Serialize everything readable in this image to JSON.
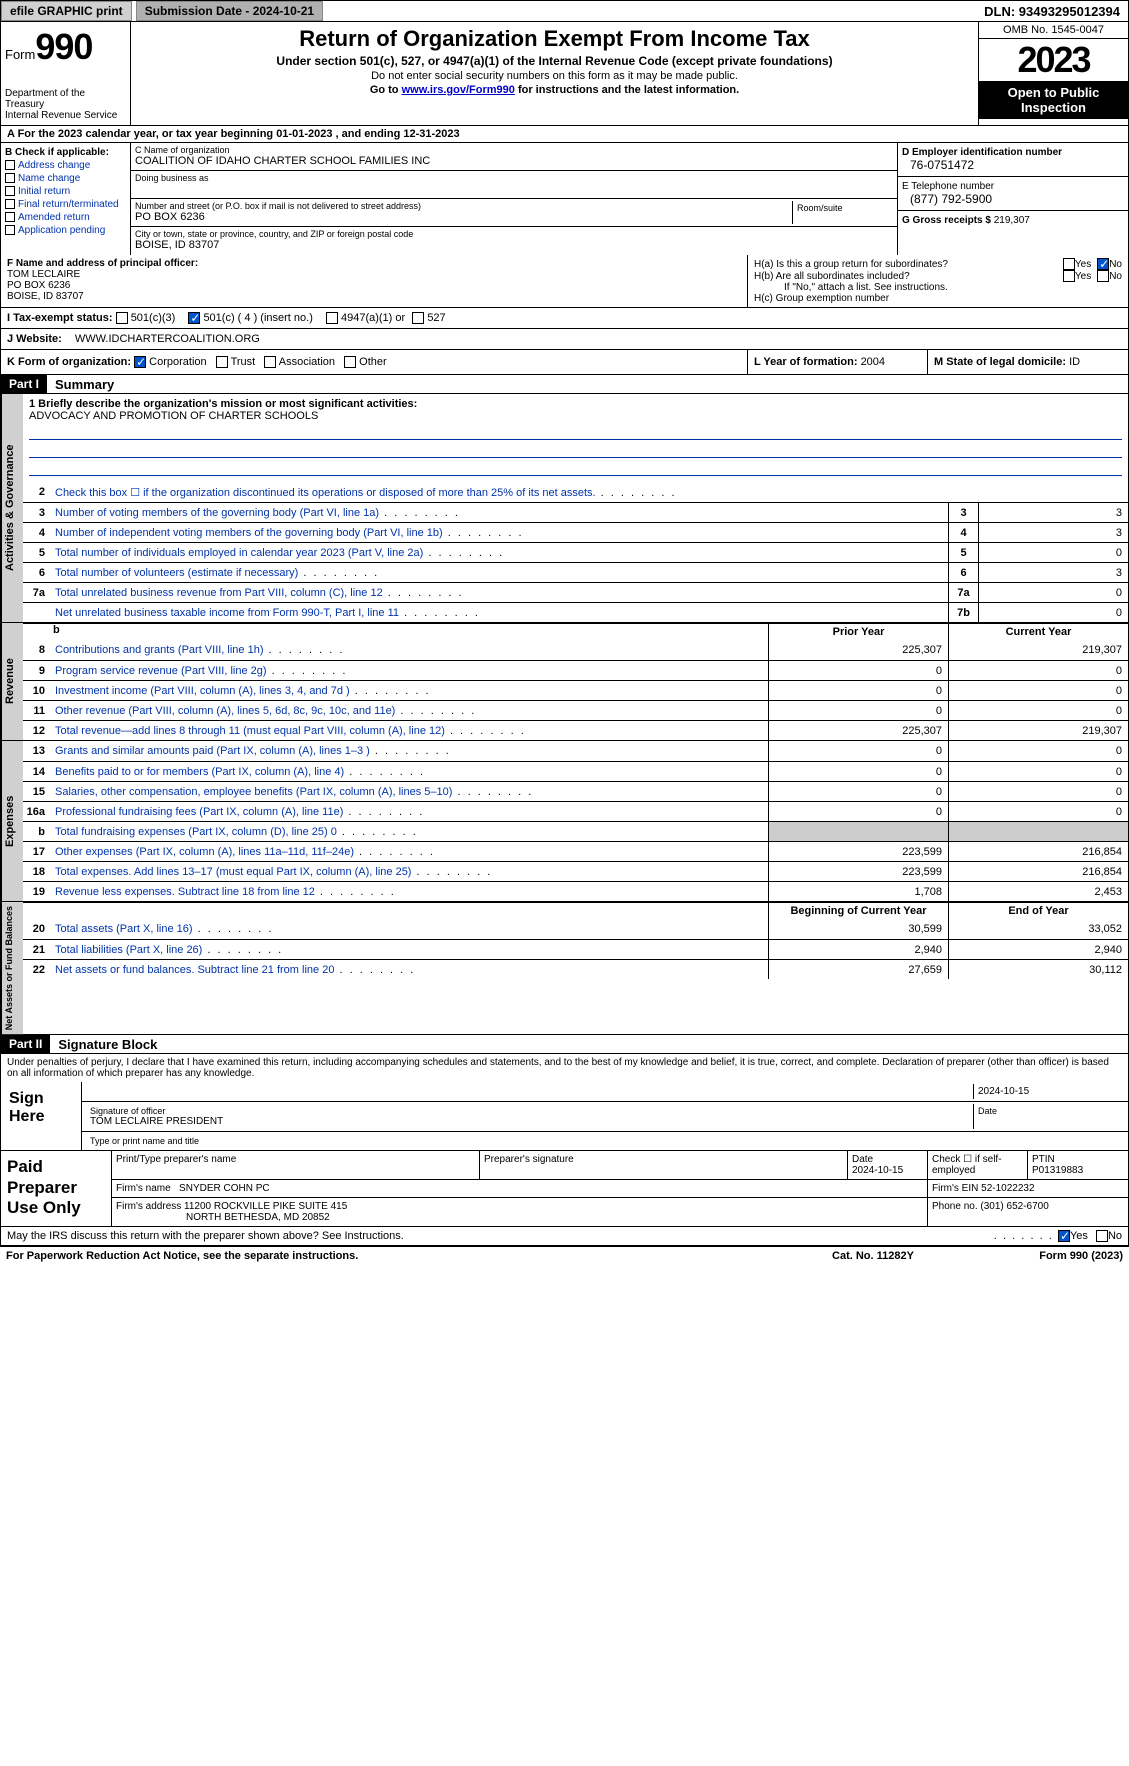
{
  "topbar": {
    "efile": "efile GRAPHIC print",
    "submission": "Submission Date - 2024-10-21",
    "dln": "DLN: 93493295012394"
  },
  "header": {
    "form_prefix": "Form",
    "form_num": "990",
    "title": "Return of Organization Exempt From Income Tax",
    "sub": "Under section 501(c), 527, or 4947(a)(1) of the Internal Revenue Code (except private foundations)",
    "sub2": "Do not enter social security numbers on this form as it may be made public.",
    "sub3_a": "Go to ",
    "sub3_link": "www.irs.gov/Form990",
    "sub3_b": " for instructions and the latest information.",
    "dept": "Department of the Treasury\nInternal Revenue Service",
    "omb": "OMB No. 1545-0047",
    "year": "2023",
    "inspection": "Open to Public Inspection"
  },
  "row_a": "A For the 2023 calendar year, or tax year beginning 01-01-2023    , and ending 12-31-2023",
  "col_b": {
    "hdr": "B Check if applicable:",
    "items": [
      "Address change",
      "Name change",
      "Initial return",
      "Final return/terminated",
      "Amended return",
      "Application pending"
    ]
  },
  "col_c": {
    "name_label": "C Name of organization",
    "name": "COALITION OF IDAHO CHARTER SCHOOL FAMILIES INC",
    "dba_label": "Doing business as",
    "dba": "",
    "street_label": "Number and street (or P.O. box if mail is not delivered to street address)",
    "street": "PO BOX 6236",
    "room_label": "Room/suite",
    "room": "",
    "city_label": "City or town, state or province, country, and ZIP or foreign postal code",
    "city": "BOISE, ID  83707"
  },
  "col_d": {
    "ein_label": "D Employer identification number",
    "ein": "76-0751472",
    "phone_label": "E Telephone number",
    "phone": "(877) 792-5900",
    "gross_label": "G Gross receipts $ ",
    "gross": "219,307"
  },
  "row_f": {
    "label": "F  Name and address of principal officer:",
    "name": "TOM LECLAIRE",
    "street": "PO BOX 6236",
    "city": "BOISE, ID  83707"
  },
  "row_h": {
    "ha": "H(a)  Is this a group return for subordinates?",
    "hb": "H(b)  Are all subordinates included?",
    "hb_note": "If \"No,\" attach a list. See instructions.",
    "hc": "H(c)  Group exemption number"
  },
  "row_i": {
    "label": "I    Tax-exempt status:",
    "opts": [
      "501(c)(3)",
      "501(c) ( 4 ) (insert no.)",
      "4947(a)(1) or",
      "527"
    ],
    "checked_idx": 1
  },
  "row_j": {
    "label": "J    Website:",
    "value": "WWW.IDCHARTERCOALITION.ORG"
  },
  "row_k": {
    "label": "K Form of organization:",
    "opts": [
      "Corporation",
      "Trust",
      "Association",
      "Other"
    ],
    "checked_idx": 0
  },
  "row_l": {
    "label": "L Year of formation: ",
    "value": "2004"
  },
  "row_m": {
    "label": "M State of legal domicile: ",
    "value": "ID"
  },
  "part1": {
    "hdr": "Part I",
    "title": "Summary"
  },
  "mission": {
    "label": "1   Briefly describe the organization's mission or most significant activities:",
    "text": "ADVOCACY AND PROMOTION OF CHARTER SCHOOLS"
  },
  "gov_lines": [
    {
      "num": "2",
      "desc": "Check this box ☐ if the organization discontinued its operations or disposed of more than 25% of its net assets.",
      "box": "",
      "val": ""
    },
    {
      "num": "3",
      "desc": "Number of voting members of the governing body (Part VI, line 1a)",
      "box": "3",
      "val": "3"
    },
    {
      "num": "4",
      "desc": "Number of independent voting members of the governing body (Part VI, line 1b)",
      "box": "4",
      "val": "3"
    },
    {
      "num": "5",
      "desc": "Total number of individuals employed in calendar year 2023 (Part V, line 2a)",
      "box": "5",
      "val": "0"
    },
    {
      "num": "6",
      "desc": "Total number of volunteers (estimate if necessary)",
      "box": "6",
      "val": "3"
    },
    {
      "num": "7a",
      "desc": "Total unrelated business revenue from Part VIII, column (C), line 12",
      "box": "7a",
      "val": "0"
    },
    {
      "num": "",
      "desc": "Net unrelated business taxable income from Form 990-T, Part I, line 11",
      "box": "7b",
      "val": "0"
    }
  ],
  "rev_hdr": {
    "prior": "Prior Year",
    "current": "Current Year"
  },
  "rev_lines": [
    {
      "num": "8",
      "desc": "Contributions and grants (Part VIII, line 1h)",
      "prior": "225,307",
      "current": "219,307"
    },
    {
      "num": "9",
      "desc": "Program service revenue (Part VIII, line 2g)",
      "prior": "0",
      "current": "0"
    },
    {
      "num": "10",
      "desc": "Investment income (Part VIII, column (A), lines 3, 4, and 7d )",
      "prior": "0",
      "current": "0"
    },
    {
      "num": "11",
      "desc": "Other revenue (Part VIII, column (A), lines 5, 6d, 8c, 9c, 10c, and 11e)",
      "prior": "0",
      "current": "0"
    },
    {
      "num": "12",
      "desc": "Total revenue—add lines 8 through 11 (must equal Part VIII, column (A), line 12)",
      "prior": "225,307",
      "current": "219,307"
    }
  ],
  "exp_lines": [
    {
      "num": "13",
      "desc": "Grants and similar amounts paid (Part IX, column (A), lines 1–3 )",
      "prior": "0",
      "current": "0"
    },
    {
      "num": "14",
      "desc": "Benefits paid to or for members (Part IX, column (A), line 4)",
      "prior": "0",
      "current": "0"
    },
    {
      "num": "15",
      "desc": "Salaries, other compensation, employee benefits (Part IX, column (A), lines 5–10)",
      "prior": "0",
      "current": "0"
    },
    {
      "num": "16a",
      "desc": "Professional fundraising fees (Part IX, column (A), line 11e)",
      "prior": "0",
      "current": "0"
    },
    {
      "num": "b",
      "desc": "Total fundraising expenses (Part IX, column (D), line 25) 0",
      "prior": "",
      "current": "",
      "grey": true
    },
    {
      "num": "17",
      "desc": "Other expenses (Part IX, column (A), lines 11a–11d, 11f–24e)",
      "prior": "223,599",
      "current": "216,854"
    },
    {
      "num": "18",
      "desc": "Total expenses. Add lines 13–17 (must equal Part IX, column (A), line 25)",
      "prior": "223,599",
      "current": "216,854"
    },
    {
      "num": "19",
      "desc": "Revenue less expenses. Subtract line 18 from line 12",
      "prior": "1,708",
      "current": "2,453"
    }
  ],
  "na_hdr": {
    "prior": "Beginning of Current Year",
    "current": "End of Year"
  },
  "na_lines": [
    {
      "num": "20",
      "desc": "Total assets (Part X, line 16)",
      "prior": "30,599",
      "current": "33,052"
    },
    {
      "num": "21",
      "desc": "Total liabilities (Part X, line 26)",
      "prior": "2,940",
      "current": "2,940"
    },
    {
      "num": "22",
      "desc": "Net assets or fund balances. Subtract line 21 from line 20",
      "prior": "27,659",
      "current": "30,112"
    }
  ],
  "part2": {
    "hdr": "Part II",
    "title": "Signature Block"
  },
  "perjury": "Under penalties of perjury, I declare that I have examined this return, including accompanying schedules and statements, and to the best of my knowledge and belief, it is true, correct, and complete. Declaration of preparer (other than officer) is based on all information of which preparer has any knowledge.",
  "sign": {
    "label": "Sign Here",
    "date": "2024-10-15",
    "sig_label": "Signature of officer",
    "name": "TOM LECLAIRE  PRESIDENT",
    "name_label": "Type or print name and title",
    "date_label": "Date"
  },
  "prep": {
    "label": "Paid Preparer Use Only",
    "hdr": [
      "Print/Type preparer's name",
      "Preparer's signature",
      "Date",
      "Check ☐ if self-employed",
      "PTIN"
    ],
    "date": "2024-10-15",
    "ptin": "P01319883",
    "firm_label": "Firm's name",
    "firm": "SNYDER COHN PC",
    "ein_label": "Firm's EIN",
    "ein": "52-1022232",
    "addr_label": "Firm's address",
    "addr1": "11200 ROCKVILLE PIKE SUITE 415",
    "addr2": "NORTH BETHESDA, MD  20852",
    "phone_label": "Phone no.",
    "phone": "(301) 652-6700"
  },
  "discuss": "May the IRS discuss this return with the preparer shown above? See Instructions.",
  "footer": {
    "left": "For Paperwork Reduction Act Notice, see the separate instructions.",
    "mid": "Cat. No. 11282Y",
    "right": "Form 990 (2023)"
  },
  "vtabs": {
    "gov": "Activities & Governance",
    "rev": "Revenue",
    "exp": "Expenses",
    "na": "Net Assets or Fund Balances"
  }
}
